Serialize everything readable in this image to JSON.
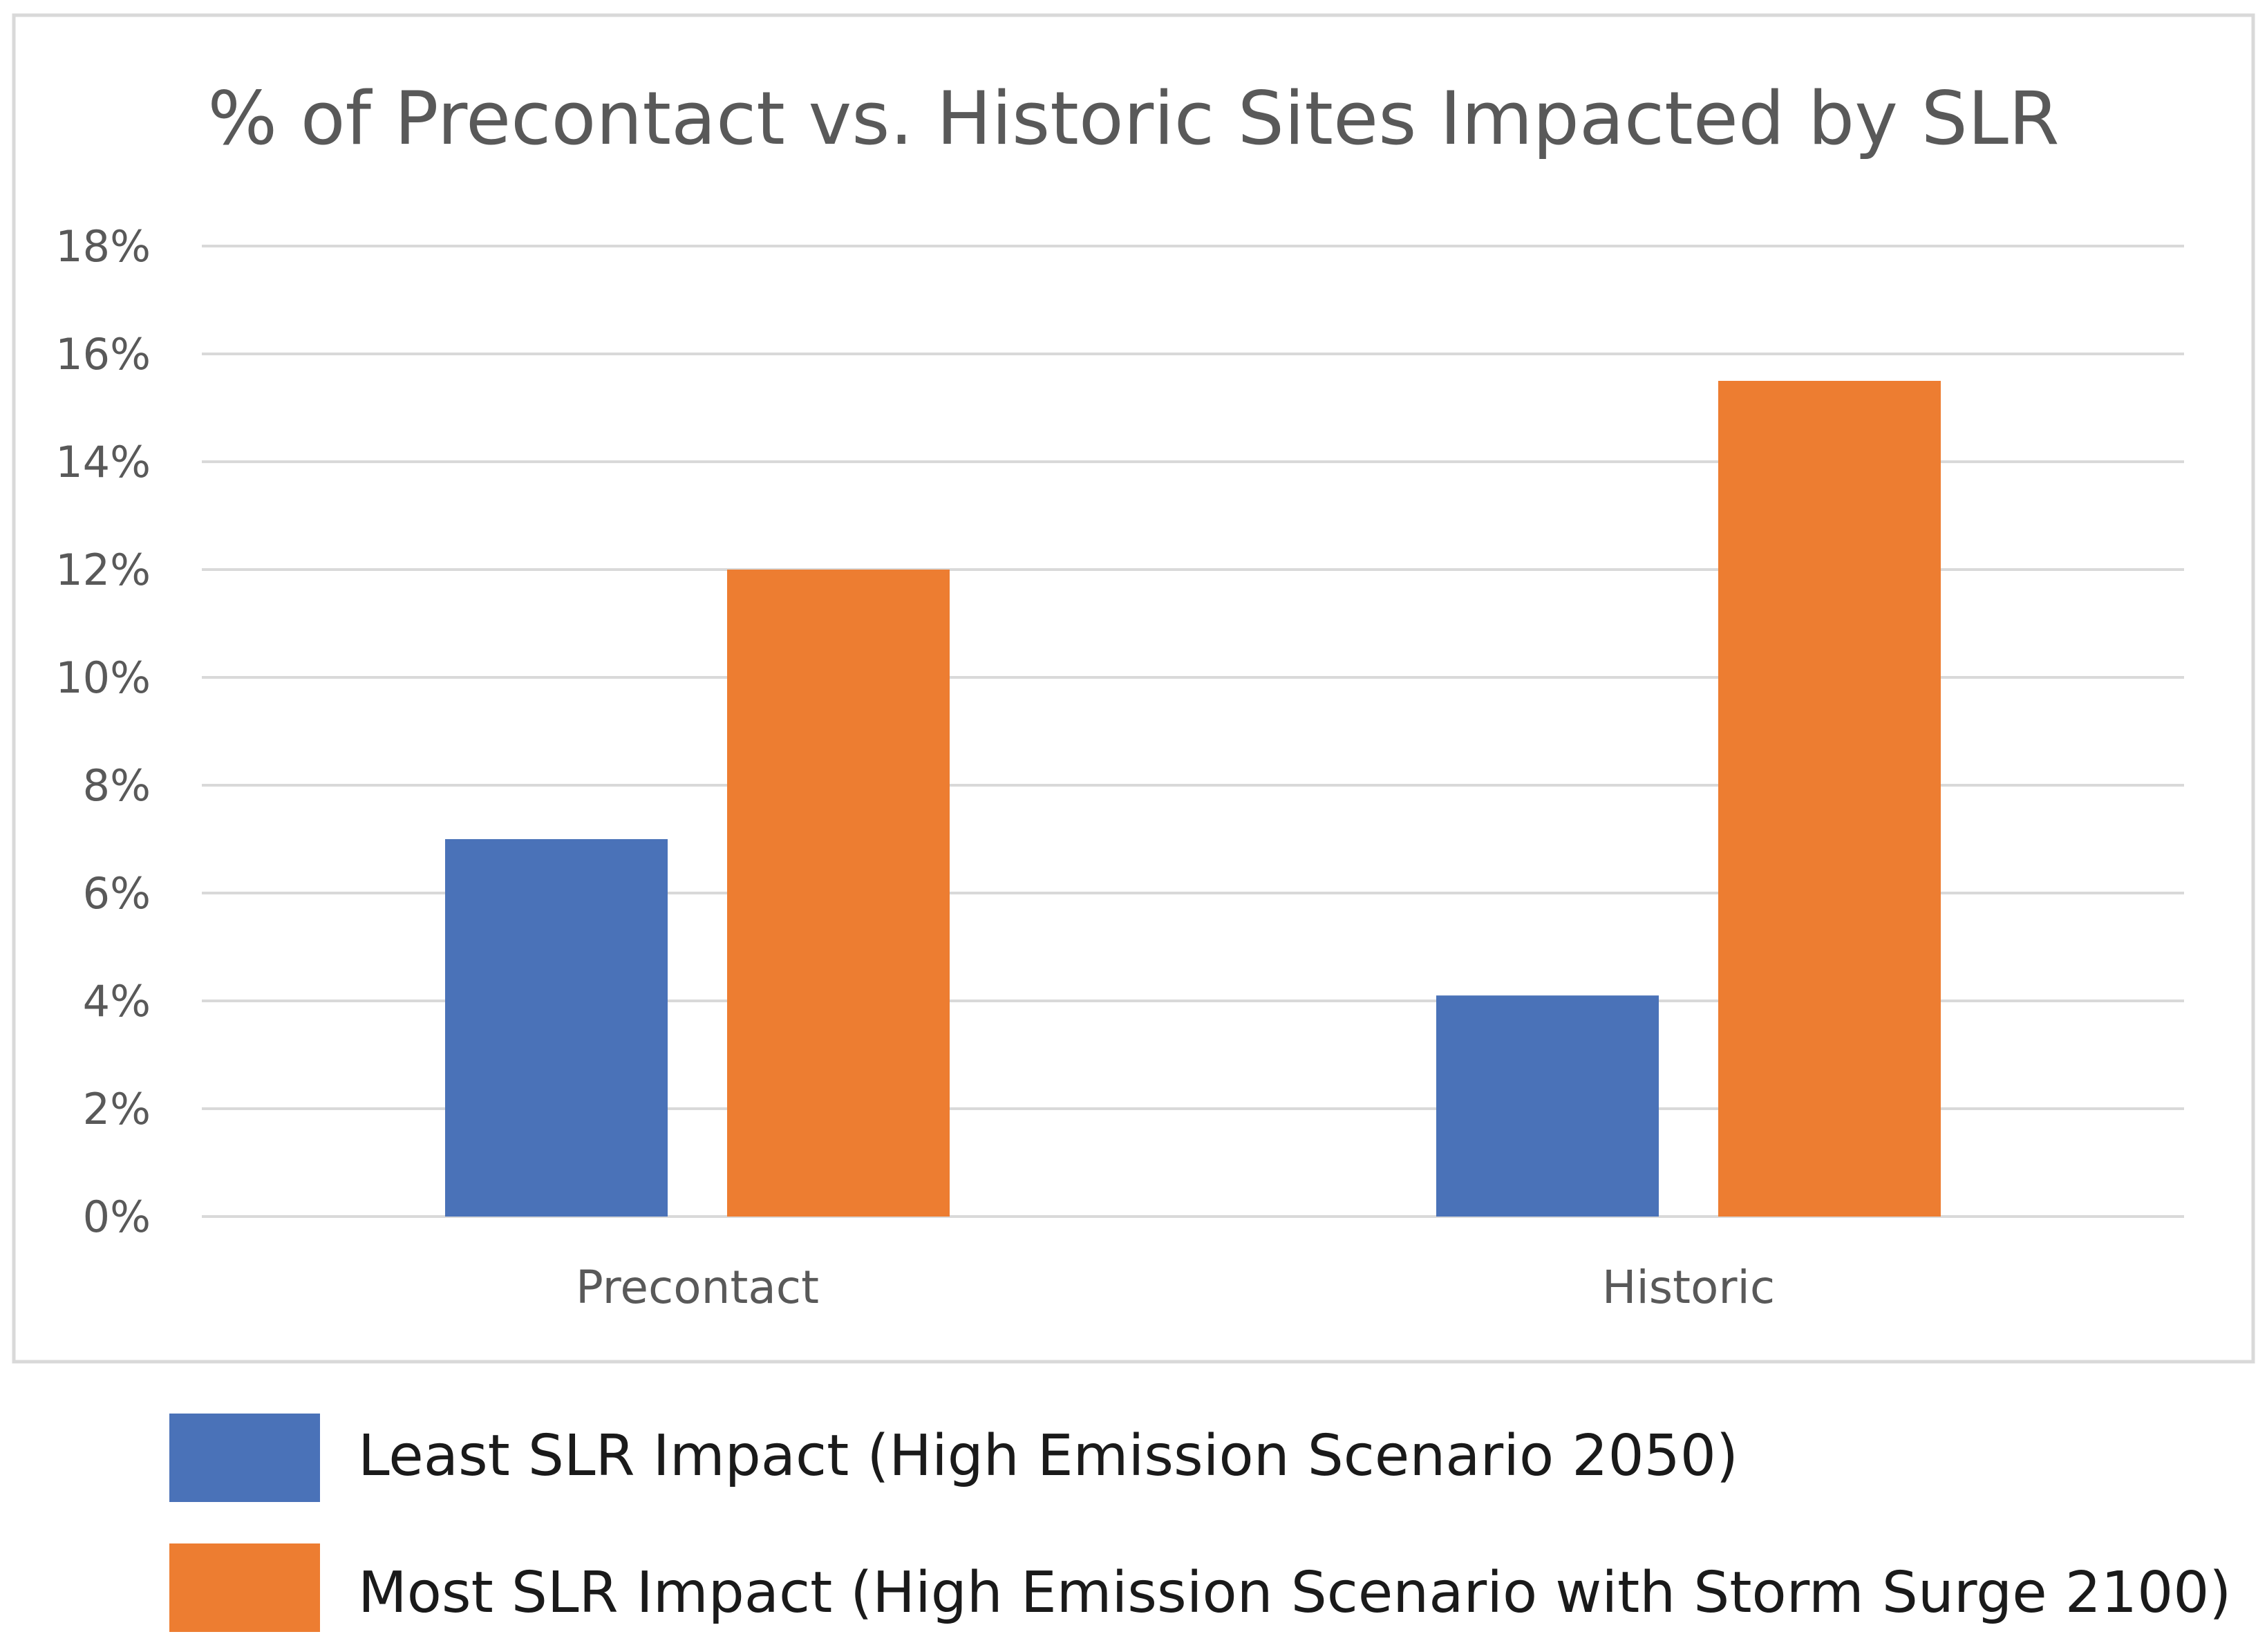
{
  "chart_data": {
    "type": "bar",
    "title": "% of Precontact vs. Historic Sites Impacted by SLR",
    "xlabel": "",
    "ylabel": "",
    "categories": [
      "Precontact",
      "Historic"
    ],
    "series": [
      {
        "name": "Least SLR Impact (High Emission Scenario 2050)",
        "color": "#4a72b8",
        "values": [
          7.0,
          4.1
        ]
      },
      {
        "name": "Most SLR Impact (High Emission Scenario with Storm Surge 2100)",
        "color": "#ed7d31",
        "values": [
          12.0,
          15.5
        ]
      }
    ],
    "ylim": [
      0,
      18
    ],
    "ytick_step": 2,
    "ytick_format": "percent",
    "grid": true,
    "legend_position": "bottom"
  },
  "colors": {
    "gridline": "#d9d9d9",
    "frame": "#d9d9d9",
    "text": "#595959"
  }
}
